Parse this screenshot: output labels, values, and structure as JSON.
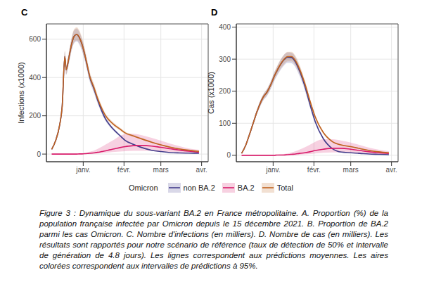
{
  "chart_data": [
    {
      "type": "line",
      "title": "C",
      "y_label": "Infections (x1000)",
      "grid": true,
      "legend": "bottom",
      "x": [
        -24,
        -21,
        -18,
        -16,
        -14,
        -13,
        -11,
        -9,
        -7,
        -5,
        -3,
        -1,
        1,
        3,
        5,
        8,
        11,
        14,
        17,
        20,
        24,
        28,
        32,
        38,
        45,
        52,
        59,
        66,
        73,
        80,
        88
      ],
      "xlim": [
        -28,
        95
      ],
      "xticks": [
        {
          "value": 0,
          "label": "janv."
        },
        {
          "value": 31,
          "label": "févr."
        },
        {
          "value": 59,
          "label": "mars"
        },
        {
          "value": 90,
          "label": "avr."
        }
      ],
      "ylim": [
        -40,
        680
      ],
      "yticks": [
        0,
        200,
        400,
        600
      ],
      "series": [
        {
          "name": "non BA.2",
          "color": "#433d8b",
          "values": [
            25,
            70,
            150,
            250,
            510,
            440,
            500,
            570,
            615,
            625,
            609,
            574,
            523,
            462,
            401,
            344,
            281,
            227,
            183,
            153,
            122,
            96,
            71,
            51,
            33,
            20,
            13,
            8,
            6,
            5,
            4
          ],
          "lower": [
            24,
            66,
            141,
            235,
            479,
            414,
            470,
            536,
            578,
            588,
            572,
            540,
            492,
            434,
            377,
            323,
            264,
            213,
            172,
            144,
            115,
            90,
            67,
            48,
            31,
            19,
            12,
            8,
            6,
            5,
            4
          ],
          "upper": [
            26,
            74,
            158,
            263,
            536,
            462,
            525,
            599,
            646,
            656,
            639,
            603,
            549,
            485,
            421,
            361,
            295,
            238,
            192,
            161,
            128,
            101,
            75,
            54,
            35,
            21,
            14,
            8,
            6,
            5,
            4
          ]
        },
        {
          "name": "BA.2",
          "color": "#d81b6a",
          "values": [
            0,
            0,
            0,
            0,
            0,
            0,
            0,
            0,
            0,
            0,
            1,
            1,
            2,
            3,
            4,
            6,
            9,
            13,
            17,
            22,
            28,
            34,
            39,
            44,
            45,
            42,
            35,
            28,
            21,
            15,
            10
          ],
          "lower": [
            0,
            0,
            0,
            0,
            0,
            0,
            0,
            0,
            0,
            0,
            0,
            0,
            1,
            1,
            2,
            3,
            4,
            5,
            7,
            9,
            11,
            13,
            15,
            17,
            17,
            16,
            13,
            11,
            8,
            6,
            4
          ],
          "upper": [
            0,
            0,
            0,
            0,
            0,
            0,
            0,
            0,
            0,
            1,
            2,
            3,
            5,
            8,
            12,
            18,
            27,
            38,
            50,
            62,
            78,
            95,
            104,
            106,
            98,
            85,
            70,
            55,
            42,
            30,
            22
          ]
        },
        {
          "name": "Total",
          "color": "#c0621f",
          "values": [
            25,
            70,
            150,
            250,
            510,
            440,
            500,
            570,
            615,
            625,
            610,
            575,
            525,
            465,
            405,
            350,
            290,
            240,
            200,
            175,
            150,
            130,
            110,
            95,
            78,
            62,
            48,
            36,
            27,
            20,
            14
          ],
          "lower": [
            24,
            66,
            142,
            237,
            484,
            418,
            475,
            541,
            584,
            594,
            580,
            546,
            499,
            442,
            385,
            332,
            275,
            228,
            190,
            166,
            142,
            123,
            104,
            90,
            74,
            59,
            45,
            34,
            25,
            19,
            13
          ],
          "upper": [
            27,
            74,
            159,
            265,
            541,
            466,
            530,
            604,
            652,
            663,
            647,
            610,
            557,
            493,
            429,
            371,
            307,
            254,
            212,
            185,
            159,
            138,
            117,
            101,
            83,
            66,
            51,
            38,
            29,
            21,
            15
          ]
        }
      ]
    },
    {
      "type": "line",
      "title": "D",
      "y_label": "Cas (x1000)",
      "grid": true,
      "legend": "bottom",
      "x": [
        -24,
        -21,
        -18,
        -16,
        -14,
        -13,
        -11,
        -9,
        -7,
        -5,
        -3,
        -1,
        1,
        3,
        5,
        8,
        11,
        14,
        17,
        20,
        24,
        28,
        32,
        38,
        45,
        52,
        59,
        66,
        73,
        80,
        88
      ],
      "xlim": [
        -28,
        95
      ],
      "xticks": [
        {
          "value": 0,
          "label": "janv."
        },
        {
          "value": 31,
          "label": "févr."
        },
        {
          "value": 59,
          "label": "mars"
        },
        {
          "value": 90,
          "label": "avr."
        }
      ],
      "ylim": [
        -20,
        410
      ],
      "yticks": [
        0,
        100,
        200,
        300,
        400
      ],
      "series": [
        {
          "name": "non BA.2",
          "color": "#433d8b",
          "values": [
            6,
            30,
            65,
            90,
            115,
            128,
            150,
            170,
            185,
            195,
            210,
            228,
            248,
            264,
            279,
            297,
            306,
            305,
            291,
            264,
            217,
            159,
            105,
            53,
            21,
            10,
            8,
            6,
            4,
            3,
            2
          ],
          "lower": [
            6,
            28,
            61,
            85,
            108,
            120,
            141,
            160,
            174,
            183,
            197,
            214,
            233,
            248,
            262,
            279,
            288,
            287,
            274,
            248,
            204,
            149,
            99,
            50,
            20,
            9,
            8,
            6,
            4,
            3,
            2
          ],
          "upper": [
            6,
            32,
            68,
            95,
            121,
            134,
            158,
            178,
            194,
            205,
            220,
            239,
            260,
            277,
            293,
            312,
            321,
            320,
            306,
            277,
            228,
            167,
            110,
            56,
            22,
            11,
            8,
            6,
            4,
            3,
            2
          ]
        },
        {
          "name": "BA.2",
          "color": "#d81b6a",
          "values": [
            0,
            0,
            0,
            0,
            0,
            0,
            0,
            0,
            0,
            0,
            0,
            0,
            0,
            1,
            1,
            1,
            2,
            3,
            4,
            6,
            8,
            11,
            15,
            19,
            22,
            22,
            19,
            15,
            11,
            8,
            6
          ],
          "lower": [
            0,
            0,
            0,
            0,
            0,
            0,
            0,
            0,
            0,
            0,
            0,
            0,
            0,
            0,
            0,
            0,
            1,
            1,
            1,
            2,
            3,
            4,
            6,
            8,
            9,
            9,
            8,
            6,
            5,
            3,
            2
          ],
          "upper": [
            0,
            0,
            0,
            0,
            0,
            0,
            0,
            0,
            0,
            0,
            0,
            0,
            0,
            2,
            3,
            4,
            6,
            9,
            13,
            18,
            25,
            33,
            42,
            50,
            50,
            46,
            40,
            32,
            24,
            18,
            13
          ]
        },
        {
          "name": "Total",
          "color": "#c0621f",
          "values": [
            6,
            30,
            65,
            90,
            115,
            128,
            150,
            170,
            185,
            195,
            210,
            228,
            248,
            265,
            280,
            298,
            308,
            308,
            295,
            270,
            225,
            170,
            120,
            72,
            43,
            32,
            27,
            21,
            15,
            11,
            8
          ],
          "lower": [
            6,
            28,
            62,
            85,
            109,
            122,
            142,
            161,
            176,
            185,
            199,
            217,
            236,
            252,
            266,
            283,
            293,
            293,
            280,
            256,
            214,
            161,
            114,
            68,
            41,
            30,
            26,
            20,
            14,
            10,
            8
          ],
          "upper": [
            6,
            32,
            68,
            95,
            121,
            134,
            158,
            178,
            194,
            205,
            220,
            239,
            260,
            278,
            294,
            313,
            323,
            323,
            310,
            284,
            236,
            178,
            126,
            76,
            45,
            34,
            28,
            22,
            16,
            12,
            8
          ]
        }
      ]
    }
  ],
  "legend_title": "Omicron",
  "caption": "Figure 3 : Dynamique du sous-variant BA.2 en France métropolitaine. A. Proportion (%) de la population française infectée par Omicron depuis le 15 décembre 2021. B. Proportion de BA.2 parmi les cas Omicron. C. Nombre d'infections (en milliers). D. Nombre de cas (en milliers). Les résultats sont rapportés pour notre scénario de référence (taux de détection de 50% et intervalle de génération de 4.8 jours). Les lignes correspondent aux prédictions moyennes. Les aires colorées correspondent aux intervalles de prédictions à 95%."
}
